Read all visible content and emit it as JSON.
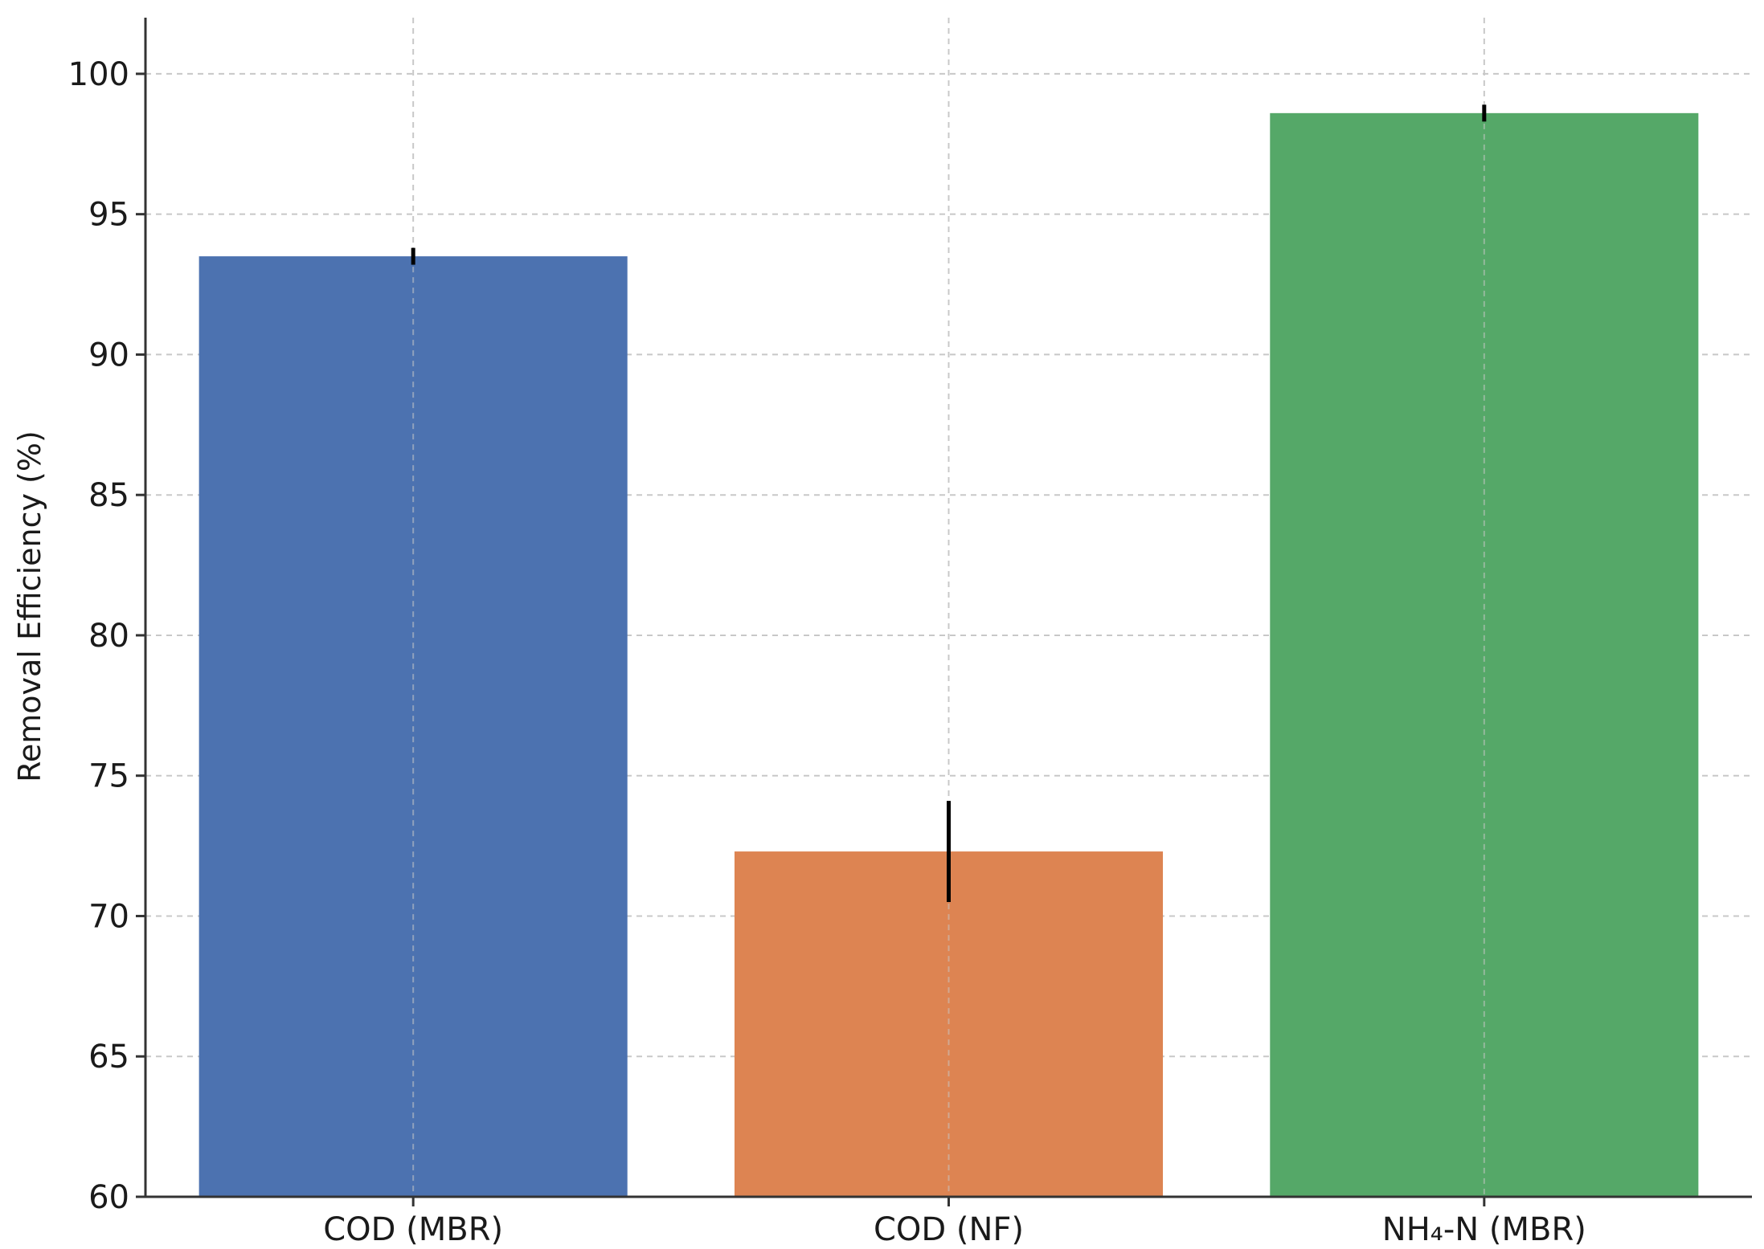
{
  "chart_data": {
    "type": "bar",
    "categories": [
      "COD (MBR)",
      "COD (NF)",
      "NH₄-N (MBR)"
    ],
    "values": [
      93.5,
      72.3,
      98.6
    ],
    "errors": [
      0.3,
      1.8,
      0.3
    ],
    "colors": [
      "#4c72b0",
      "#dd8452",
      "#55a868"
    ],
    "title": "",
    "xlabel": "",
    "ylabel": "Removal Efficiency (%)",
    "ylim": [
      60,
      102
    ],
    "yticks": [
      60,
      65,
      70,
      75,
      80,
      85,
      90,
      95,
      100
    ],
    "grid": true
  }
}
